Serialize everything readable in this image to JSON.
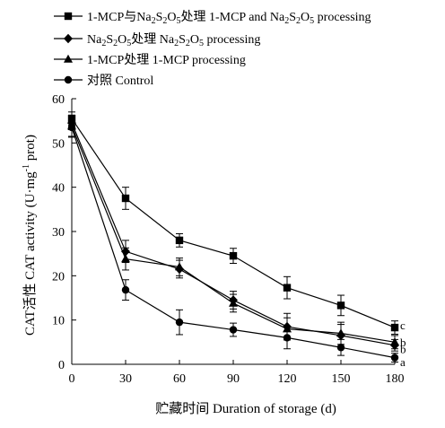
{
  "chart_data": {
    "type": "line",
    "title": "",
    "xlabel": "贮藏时间 Duration of storage (d)",
    "ylabel_parts": {
      "pre": "CAT活性 CAT activity (U·mg",
      "sup": "-1",
      "post": " prot)"
    },
    "x": [
      0,
      30,
      60,
      90,
      120,
      150,
      180
    ],
    "xlim": [
      0,
      180
    ],
    "ylim": [
      0,
      60
    ],
    "xticks": [
      "0",
      "30",
      "60",
      "90",
      "120",
      "150",
      "180"
    ],
    "yticks": [
      "0",
      "10",
      "20",
      "30",
      "40",
      "50",
      "60"
    ],
    "grid": false,
    "legend_position": "top-left",
    "series": [
      {
        "id": "mcp-na",
        "legend_parts": [
          {
            "t": "1-MCP与Na"
          },
          {
            "t": "2",
            "sub": true
          },
          {
            "t": "S"
          },
          {
            "t": "2",
            "sub": true
          },
          {
            "t": "O"
          },
          {
            "t": "5",
            "sub": true
          },
          {
            "t": "处理 1-MCP and Na"
          },
          {
            "t": "2",
            "sub": true
          },
          {
            "t": "S"
          },
          {
            "t": "2",
            "sub": true
          },
          {
            "t": "O"
          },
          {
            "t": "5",
            "sub": true
          },
          {
            "t": " processing"
          }
        ],
        "marker": "square",
        "values": [
          55.5,
          37.5,
          28.0,
          24.5,
          17.3,
          13.3,
          8.3
        ],
        "errors": [
          1.5,
          2.5,
          1.5,
          1.7,
          2.5,
          2.3,
          1.5
        ],
        "significance": "c"
      },
      {
        "id": "na",
        "legend_parts": [
          {
            "t": "Na"
          },
          {
            "t": "2",
            "sub": true
          },
          {
            "t": "S"
          },
          {
            "t": "2",
            "sub": true
          },
          {
            "t": "O"
          },
          {
            "t": "5",
            "sub": true
          },
          {
            "t": "处理 Na"
          },
          {
            "t": "2",
            "sub": true
          },
          {
            "t": "S"
          },
          {
            "t": "2",
            "sub": true
          },
          {
            "t": "O"
          },
          {
            "t": "5",
            "sub": true
          },
          {
            "t": " processing"
          }
        ],
        "marker": "diamond",
        "values": [
          54.5,
          25.5,
          21.5,
          14.5,
          8.5,
          6.5,
          4.3
        ],
        "errors": [
          1.5,
          2.5,
          2.0,
          2.0,
          3.0,
          2.5,
          1.3
        ],
        "significance": "b"
      },
      {
        "id": "mcp",
        "legend_parts": [
          {
            "t": "1-MCP处理 1-MCP processing"
          }
        ],
        "marker": "triangle",
        "values": [
          53.8,
          23.8,
          22.0,
          13.8,
          8.0,
          7.0,
          5.0
        ],
        "errors": [
          2.5,
          2.5,
          2.0,
          2.0,
          2.5,
          2.5,
          1.5
        ],
        "significance": "b"
      },
      {
        "id": "ctrl",
        "legend_parts": [
          {
            "t": "对照 Control"
          }
        ],
        "marker": "circle",
        "values": [
          53.5,
          16.8,
          9.5,
          7.8,
          6.0,
          3.8,
          1.5
        ],
        "errors": [
          2.0,
          2.3,
          2.8,
          1.5,
          2.5,
          1.8,
          1.0
        ],
        "significance": "a"
      }
    ]
  }
}
